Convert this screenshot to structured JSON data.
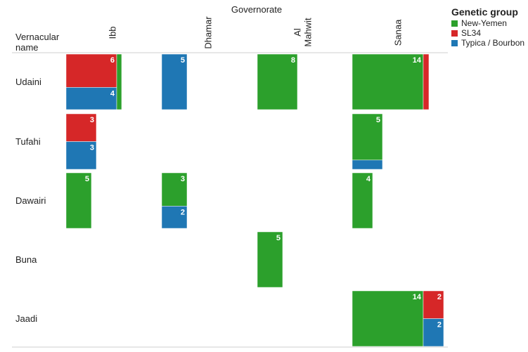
{
  "chart_data": {
    "type": "bar",
    "column_header": "Governorate",
    "row_header_lines": [
      "Vernacular",
      "name"
    ],
    "columns": [
      {
        "name": "Ibb",
        "lines": [
          "Ibb"
        ]
      },
      {
        "name": "Dhamar",
        "lines": [
          "Dhamar"
        ]
      },
      {
        "name": "Al Mahwit",
        "lines": [
          "Al",
          "Mahwit"
        ]
      },
      {
        "name": "Sanaa",
        "lines": [
          "Sanaa"
        ]
      }
    ],
    "rows": [
      "Udaini",
      "Tufahi",
      "Dawairi",
      "Buna",
      "Jaadi"
    ],
    "legend": {
      "title": "Genetic group",
      "placement": "top-right",
      "items": [
        {
          "name": "New-Yemen",
          "color": "#2ca02c"
        },
        {
          "name": "SL34",
          "color": "#d62728"
        },
        {
          "name": "Typica / Bourbon",
          "color": "#1f77b4"
        }
      ]
    },
    "cells": [
      {
        "row": "Udaini",
        "col": "Ibb",
        "segments": [
          {
            "group": "SL34",
            "count": 6,
            "label": "6"
          },
          {
            "group": "Typica / Bourbon",
            "count": 4,
            "label": "4"
          },
          {
            "group": "New-Yemen",
            "count": 1,
            "label": ""
          }
        ]
      },
      {
        "row": "Udaini",
        "col": "Dhamar",
        "segments": [
          {
            "group": "Typica / Bourbon",
            "count": 5,
            "label": "5"
          }
        ]
      },
      {
        "row": "Udaini",
        "col": "Al Mahwit",
        "segments": [
          {
            "group": "New-Yemen",
            "count": 8,
            "label": "8"
          }
        ]
      },
      {
        "row": "Udaini",
        "col": "Sanaa",
        "segments": [
          {
            "group": "New-Yemen",
            "count": 14,
            "label": "14"
          },
          {
            "group": "SL34",
            "count": 1,
            "label": ""
          }
        ]
      },
      {
        "row": "Tufahi",
        "col": "Ibb",
        "segments": [
          {
            "group": "SL34",
            "count": 3,
            "label": "3"
          },
          {
            "group": "Typica / Bourbon",
            "count": 3,
            "label": "3"
          }
        ]
      },
      {
        "row": "Tufahi",
        "col": "Sanaa",
        "segments": [
          {
            "group": "New-Yemen",
            "count": 5,
            "label": "5"
          },
          {
            "group": "Typica / Bourbon",
            "count": 1,
            "label": ""
          }
        ]
      },
      {
        "row": "Dawairi",
        "col": "Ibb",
        "segments": [
          {
            "group": "New-Yemen",
            "count": 5,
            "label": "5"
          }
        ]
      },
      {
        "row": "Dawairi",
        "col": "Dhamar",
        "segments": [
          {
            "group": "New-Yemen",
            "count": 3,
            "label": "3"
          },
          {
            "group": "Typica / Bourbon",
            "count": 2,
            "label": "2"
          }
        ]
      },
      {
        "row": "Dawairi",
        "col": "Sanaa",
        "segments": [
          {
            "group": "New-Yemen",
            "count": 4,
            "label": "4"
          }
        ]
      },
      {
        "row": "Buna",
        "col": "Al Mahwit",
        "segments": [
          {
            "group": "New-Yemen",
            "count": 5,
            "label": "5"
          }
        ]
      },
      {
        "row": "Jaadi",
        "col": "Sanaa",
        "segments": [
          {
            "group": "New-Yemen",
            "count": 14,
            "label": "14"
          },
          {
            "group": "SL34",
            "count": 2,
            "label": "2"
          },
          {
            "group": "Typica / Bourbon",
            "count": 2,
            "label": "2"
          }
        ]
      }
    ]
  }
}
